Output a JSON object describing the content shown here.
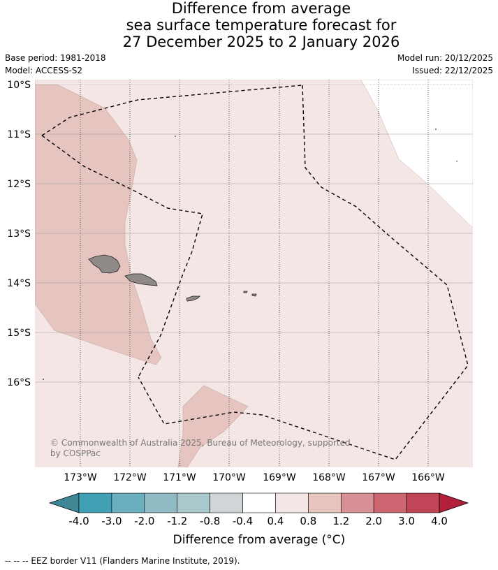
{
  "title": {
    "line1": "Difference from average",
    "line2": "sea surface temperature forecast for",
    "line3": "27 December 2025 to 2 January 2026"
  },
  "meta_left": {
    "base_period": "Base period: 1981-2018",
    "model": "Model: ACCESS-S2"
  },
  "meta_right": {
    "model_run": "Model run: 20/12/2025",
    "issued": "Issued: 22/12/2025"
  },
  "lat_labels": [
    "10°S",
    "11°S",
    "12°S",
    "13°S",
    "14°S",
    "15°S",
    "16°S"
  ],
  "lon_labels": [
    "173°W",
    "172°W",
    "171°W",
    "170°W",
    "169°W",
    "168°W",
    "167°W",
    "166°W"
  ],
  "copyright_line1": "© Commonwealth of Australia 2025, Bureau of Meteorology, supported",
  "copyright_line2": "by COSPPac",
  "colorbar": {
    "tick_labels": [
      "-4.0",
      "-3.0",
      "-2.0",
      "-1.2",
      "-0.8",
      "-0.4",
      "0.4",
      "0.8",
      "1.2",
      "2.0",
      "3.0",
      "4.0"
    ],
    "colors": [
      "#41a0b4",
      "#6aafbf",
      "#8fbac4",
      "#a9c8cb",
      "#d0d6d7",
      "#ffffff",
      "#f3e6e4",
      "#e6c4bf",
      "#d98f96",
      "#ce6671",
      "#c04556"
    ],
    "low_extend_color": "#3f8795",
    "high_extend_color": "#b41f3c",
    "label": "Difference from average (°C)"
  },
  "legend_footer": "--  --  -- EEZ border V11 (Flanders Marine Institute, 2019).",
  "map_colors": {
    "background_anomaly": "#f3e6e4",
    "warm_anomaly": "#e6c4bf",
    "neutral": "#ffffff",
    "land": "#8f8a88"
  }
}
